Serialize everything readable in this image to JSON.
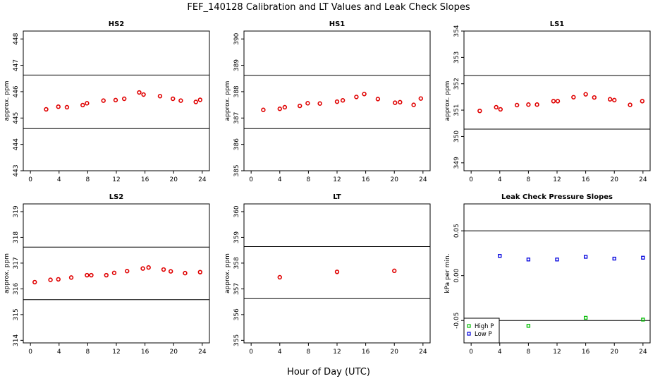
{
  "figure": {
    "title": "FEF_140128  Calibration and LT Values and Leak Check Slopes",
    "xlabel": "Hour of Day (UTC)"
  },
  "colors": {
    "calibration": "#e00000",
    "high_p": "#00bb00",
    "low_p": "#0000dd",
    "axis": "#000000"
  },
  "chart_data": [
    {
      "type": "scatter",
      "title": "HS2",
      "ylabel": "approx. ppm",
      "xlim": [
        -1,
        25
      ],
      "ylim": [
        443,
        448.3
      ],
      "xticks": [
        0,
        4,
        8,
        12,
        16,
        20,
        24
      ],
      "yticks": [
        443,
        444,
        445,
        446,
        447,
        448
      ],
      "hlines": [
        444.6,
        446.63
      ],
      "points": [
        [
          2.2,
          445.33
        ],
        [
          3.9,
          445.43
        ],
        [
          5.1,
          445.41
        ],
        [
          7.3,
          445.49
        ],
        [
          7.9,
          445.56
        ],
        [
          10.2,
          445.66
        ],
        [
          11.9,
          445.68
        ],
        [
          13.1,
          445.73
        ],
        [
          15.2,
          445.97
        ],
        [
          15.8,
          445.89
        ],
        [
          18.1,
          445.83
        ],
        [
          19.9,
          445.73
        ],
        [
          21.0,
          445.66
        ],
        [
          23.1,
          445.61
        ],
        [
          23.7,
          445.69
        ]
      ]
    },
    {
      "type": "scatter",
      "title": "HS1",
      "ylabel": "approx. ppm",
      "xlim": [
        -1,
        25
      ],
      "ylim": [
        385,
        390.3
      ],
      "xticks": [
        0,
        4,
        8,
        12,
        16,
        20,
        24
      ],
      "yticks": [
        385,
        386,
        387,
        388,
        389,
        390
      ],
      "hlines": [
        386.6,
        388.62
      ],
      "points": [
        [
          1.7,
          387.31
        ],
        [
          4.0,
          387.35
        ],
        [
          4.7,
          387.41
        ],
        [
          6.8,
          387.46
        ],
        [
          7.9,
          387.56
        ],
        [
          9.6,
          387.55
        ],
        [
          12.0,
          387.62
        ],
        [
          12.8,
          387.67
        ],
        [
          14.7,
          387.8
        ],
        [
          15.8,
          387.91
        ],
        [
          17.7,
          387.72
        ],
        [
          20.1,
          387.58
        ],
        [
          20.8,
          387.6
        ],
        [
          22.7,
          387.5
        ],
        [
          23.7,
          387.74
        ]
      ]
    },
    {
      "type": "scatter",
      "title": "LS1",
      "ylabel": "approx. ppm",
      "xlim": [
        -1,
        25
      ],
      "ylim": [
        348.7,
        354
      ],
      "xticks": [
        0,
        4,
        8,
        12,
        16,
        20,
        24
      ],
      "yticks": [
        349,
        350,
        351,
        352,
        353,
        354
      ],
      "hlines": [
        350.28,
        352.31
      ],
      "points": [
        [
          1.2,
          350.97
        ],
        [
          3.5,
          351.11
        ],
        [
          4.1,
          351.03
        ],
        [
          6.4,
          351.19
        ],
        [
          8.0,
          351.21
        ],
        [
          9.2,
          351.21
        ],
        [
          11.5,
          351.34
        ],
        [
          12.1,
          351.34
        ],
        [
          14.3,
          351.49
        ],
        [
          16.0,
          351.6
        ],
        [
          17.2,
          351.48
        ],
        [
          19.4,
          351.41
        ],
        [
          20.0,
          351.38
        ],
        [
          22.2,
          351.2
        ],
        [
          23.9,
          351.34
        ]
      ]
    },
    {
      "type": "scatter",
      "title": "LS2",
      "ylabel": "approx. ppm",
      "xlim": [
        -1,
        25
      ],
      "ylim": [
        313.9,
        319.3
      ],
      "xticks": [
        0,
        4,
        8,
        12,
        16,
        20,
        24
      ],
      "yticks": [
        314,
        315,
        316,
        317,
        318,
        319
      ],
      "hlines": [
        315.58,
        317.62
      ],
      "points": [
        [
          0.6,
          316.26
        ],
        [
          2.8,
          316.35
        ],
        [
          3.9,
          316.37
        ],
        [
          5.7,
          316.44
        ],
        [
          7.9,
          316.53
        ],
        [
          8.5,
          316.53
        ],
        [
          10.6,
          316.53
        ],
        [
          11.7,
          316.62
        ],
        [
          13.5,
          316.69
        ],
        [
          15.7,
          316.79
        ],
        [
          16.5,
          316.83
        ],
        [
          18.6,
          316.75
        ],
        [
          19.6,
          316.68
        ],
        [
          21.6,
          316.61
        ],
        [
          23.7,
          316.65
        ]
      ]
    },
    {
      "type": "scatter",
      "title": "LT",
      "ylabel": "approx. ppm",
      "xlim": [
        -1,
        25
      ],
      "ylim": [
        354.9,
        360.3
      ],
      "xticks": [
        0,
        4,
        8,
        12,
        16,
        20,
        24
      ],
      "yticks": [
        355,
        356,
        357,
        358,
        359,
        360
      ],
      "hlines": [
        356.62,
        358.64
      ],
      "points": [
        [
          4.0,
          357.45
        ],
        [
          12.0,
          357.66
        ],
        [
          20.0,
          357.7
        ]
      ]
    },
    {
      "type": "scatter",
      "title": "Leak Check Pressure Slopes",
      "ylabel": "kPa per min.",
      "xlim": [
        -1,
        25
      ],
      "ylim": [
        -0.075,
        0.08
      ],
      "xticks": [
        0,
        4,
        8,
        12,
        16,
        20,
        24
      ],
      "yticks": [
        -0.05,
        0.0,
        0.05
      ],
      "ytick_labels": [
        "-0.05",
        "0.00",
        "0.05"
      ],
      "hlines": [
        -0.05,
        0.05
      ],
      "series": [
        {
          "name": "High P",
          "color": "#00bb00",
          "points": [
            [
              8.0,
              -0.056
            ],
            [
              16.0,
              -0.047
            ],
            [
              24.0,
              -0.049
            ]
          ]
        },
        {
          "name": "Low P",
          "color": "#0000dd",
          "points": [
            [
              4.0,
              0.022
            ],
            [
              8.0,
              0.018
            ],
            [
              12.0,
              0.018
            ],
            [
              16.0,
              0.021
            ],
            [
              20.0,
              0.019
            ],
            [
              24.0,
              0.02
            ]
          ]
        }
      ],
      "legend": "bottom-left"
    }
  ]
}
